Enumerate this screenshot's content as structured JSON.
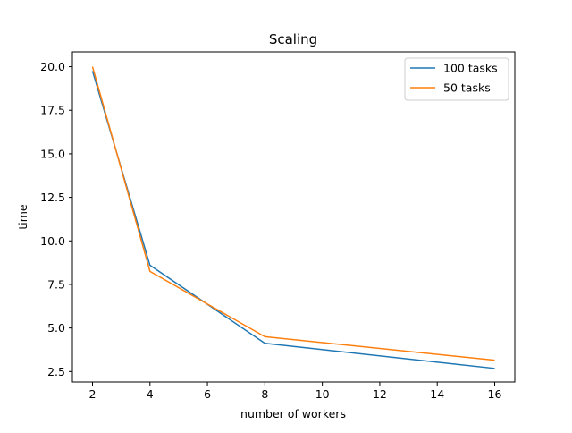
{
  "chart_data": {
    "type": "line",
    "title": "Scaling",
    "xlabel": "number of workers",
    "ylabel": "time",
    "xlim": [
      1.3,
      16.7
    ],
    "ylim": [
      1.9,
      20.85
    ],
    "xticks": [
      2,
      4,
      6,
      8,
      10,
      12,
      14,
      16
    ],
    "xtick_labels": [
      "2",
      "4",
      "6",
      "8",
      "10",
      "12",
      "14",
      "16"
    ],
    "yticks": [
      2.5,
      5.0,
      7.5,
      10.0,
      12.5,
      15.0,
      17.5,
      20.0
    ],
    "ytick_labels": [
      "2.5",
      "5.0",
      "7.5",
      "10.0",
      "12.5",
      "15.0",
      "17.5",
      "20.0"
    ],
    "x": [
      2,
      4,
      8,
      16
    ],
    "series": [
      {
        "name": "100 tasks",
        "values": [
          19.75,
          8.6,
          4.12,
          2.68
        ],
        "color": "#1f77b4"
      },
      {
        "name": "50 tasks",
        "values": [
          20.0,
          8.25,
          4.5,
          3.15
        ],
        "color": "#ff7f0e"
      }
    ],
    "legend": "top-right",
    "grid": false
  }
}
